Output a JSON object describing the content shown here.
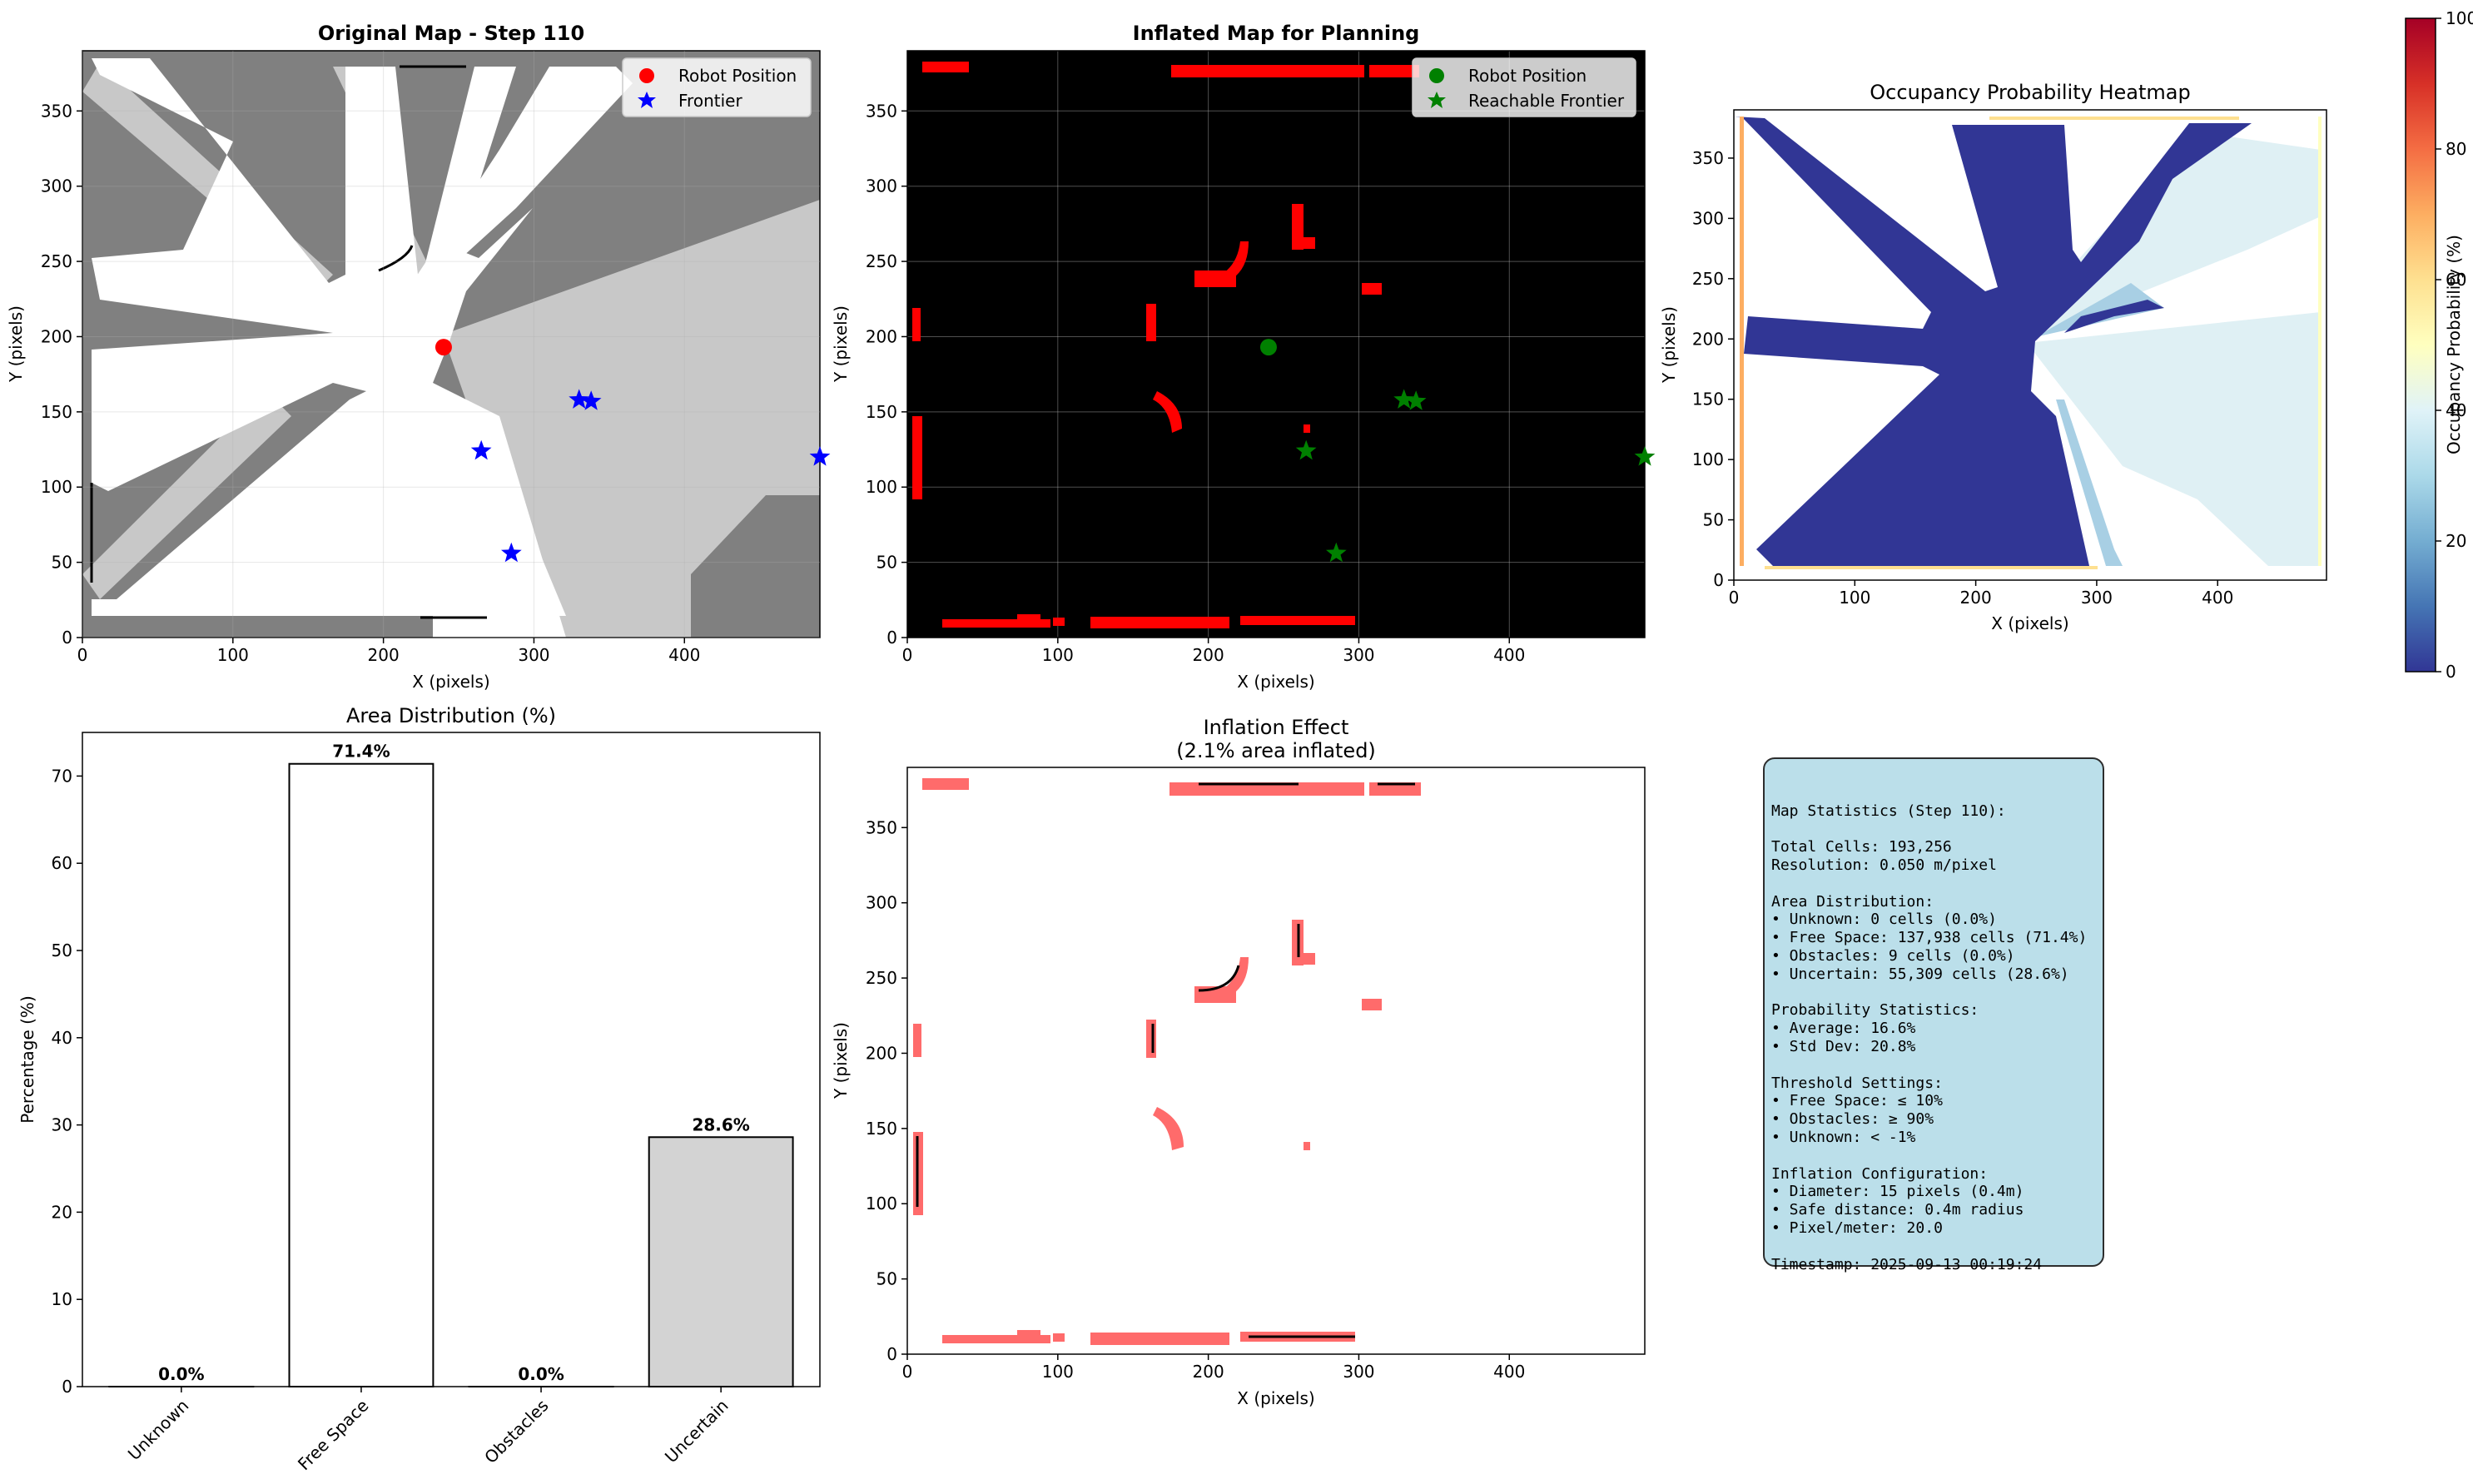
{
  "panels": {
    "original": {
      "title": "Original Map - Step 110",
      "xlabel": "X (pixels)",
      "ylabel": "Y (pixels)",
      "xticks": [
        "0",
        "100",
        "200",
        "300",
        "400"
      ],
      "yticks": [
        "0",
        "50",
        "100",
        "150",
        "200",
        "250",
        "300",
        "350"
      ],
      "legend": [
        "Robot Position",
        "Frontier"
      ]
    },
    "inflated": {
      "title": "Inflated Map for Planning",
      "xlabel": "X (pixels)",
      "ylabel": "Y (pixels)",
      "xticks": [
        "0",
        "100",
        "200",
        "300",
        "400"
      ],
      "yticks": [
        "0",
        "50",
        "100",
        "150",
        "200",
        "250",
        "300",
        "350"
      ],
      "legend": [
        "Robot Position",
        "Reachable Frontier"
      ]
    },
    "heatmap": {
      "title": "Occupancy Probability Heatmap",
      "xlabel": "X (pixels)",
      "ylabel": "Y (pixels)",
      "xticks": [
        "0",
        "100",
        "200",
        "300",
        "400"
      ],
      "yticks": [
        "0",
        "50",
        "100",
        "150",
        "200",
        "250",
        "300",
        "350"
      ],
      "colorbar_label": "Occupancy Probability (%)",
      "colorbar_ticks": [
        "0",
        "20",
        "40",
        "60",
        "80",
        "100"
      ]
    },
    "area": {
      "title": "Area Distribution (%)",
      "ylabel": "Percentage (%)",
      "yticks": [
        "0",
        "10",
        "20",
        "30",
        "40",
        "50",
        "60",
        "70"
      ]
    },
    "inflation": {
      "title": "Inflation Effect",
      "subtitle": "(2.1% area inflated)",
      "xlabel": "X (pixels)",
      "ylabel": "Y (pixels)",
      "xticks": [
        "0",
        "100",
        "200",
        "300",
        "400"
      ],
      "yticks": [
        "0",
        "50",
        "100",
        "150",
        "200",
        "250",
        "300",
        "350"
      ]
    }
  },
  "colors": {
    "robot": "#ff0000",
    "frontier": "#0000ff",
    "reachable": "#008000",
    "obstacle": "#ff0000",
    "inflated": "#ff6b6b",
    "unknown_gray": "#808080",
    "uncertain_gray": "#c8c8c8",
    "free": "#ffffff",
    "stats_bg": "#add8e6"
  },
  "chart_data": [
    {
      "type": "scatter",
      "panel": "original",
      "title": "Original Map - Step 110",
      "xlim": [
        0,
        490
      ],
      "ylim": [
        0,
        390
      ],
      "series": [
        {
          "name": "Robot Position",
          "x": [
            240
          ],
          "y": [
            193
          ]
        },
        {
          "name": "Frontier",
          "x": [
            330,
            338,
            265,
            285,
            490
          ],
          "y": [
            158,
            157,
            124,
            56,
            120
          ]
        }
      ]
    },
    {
      "type": "scatter",
      "panel": "inflated",
      "title": "Inflated Map for Planning",
      "xlim": [
        0,
        490
      ],
      "ylim": [
        0,
        390
      ],
      "series": [
        {
          "name": "Robot Position",
          "x": [
            240
          ],
          "y": [
            193
          ]
        },
        {
          "name": "Reachable Frontier",
          "x": [
            330,
            338,
            265,
            285,
            490
          ],
          "y": [
            158,
            157,
            124,
            56,
            120
          ]
        }
      ]
    },
    {
      "type": "heatmap",
      "panel": "heatmap",
      "title": "Occupancy Probability Heatmap",
      "xlim": [
        0,
        490
      ],
      "ylim": [
        0,
        390
      ],
      "colorbar_range": [
        0,
        100
      ],
      "colormap": "RdYlBu_r"
    },
    {
      "type": "bar",
      "panel": "area",
      "title": "Area Distribution (%)",
      "categories": [
        "Unknown",
        "Free Space",
        "Obstacles",
        "Uncertain"
      ],
      "values": [
        0.0,
        71.4,
        0.0,
        28.6
      ],
      "labels": [
        "0.0%",
        "71.4%",
        "0.0%",
        "28.6%"
      ],
      "bar_colors": [
        "#808080",
        "#ffffff",
        "#000000",
        "#d3d3d3"
      ],
      "ylim": [
        0,
        75
      ],
      "ylabel": "Percentage (%)"
    },
    {
      "type": "heatmap",
      "panel": "inflation",
      "title": "Inflation Effect",
      "subtitle": "(2.1% area inflated)",
      "xlim": [
        0,
        490
      ],
      "ylim": [
        0,
        390
      ]
    }
  ],
  "stats": {
    "lines": [
      "Map Statistics (Step 110):",
      "",
      "Total Cells: 193,256",
      "Resolution: 0.050 m/pixel",
      "",
      "Area Distribution:",
      "• Unknown: 0 cells (0.0%)",
      "• Free Space: 137,938 cells (71.4%)",
      "• Obstacles: 9 cells (0.0%)",
      "• Uncertain: 55,309 cells (28.6%)",
      "",
      "Probability Statistics:",
      "• Average: 16.6%",
      "• Std Dev: 20.8%",
      "",
      "Threshold Settings:",
      "• Free Space: ≤ 10%",
      "• Obstacles: ≥ 90%",
      "• Unknown: < -1%",
      "",
      "Inflation Configuration:",
      "• Diameter: 15 pixels (0.4m)",
      "• Safe distance: 0.4m radius",
      "• Pixel/meter: 20.0",
      "",
      "Timestamp: 2025-09-13 00:19:24"
    ]
  }
}
